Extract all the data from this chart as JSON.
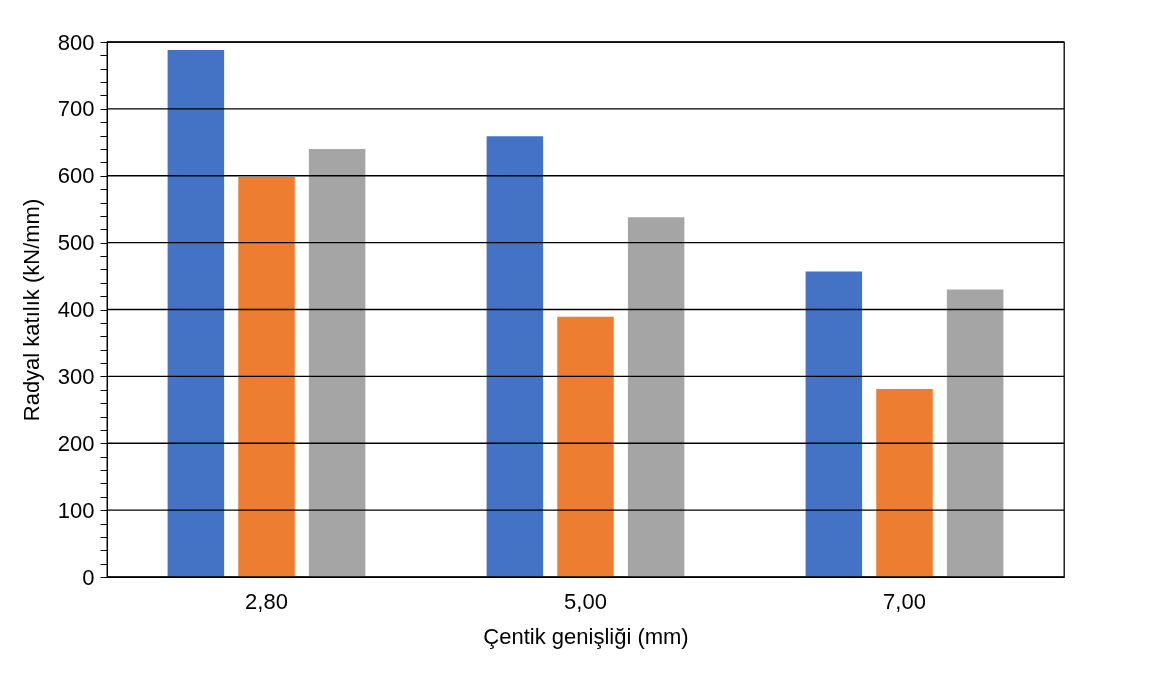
{
  "chart_data": {
    "type": "bar",
    "xlabel": "Çentik genişliği (mm)",
    "ylabel": "Radyal katılık (kN/mm)",
    "categories": [
      "2,80",
      "5,00",
      "7,00"
    ],
    "series": [
      {
        "color": "#4472c4",
        "values": [
          788,
          659,
          457
        ]
      },
      {
        "color": "#ed7d31",
        "values": [
          598,
          389,
          281
        ]
      },
      {
        "color": "#a5a5a5",
        "values": [
          640,
          538,
          430
        ]
      }
    ],
    "ylim": [
      0,
      800
    ],
    "yticks": [
      0,
      {
        "value": 20,
        "label": null
      },
      {
        "value": 40,
        "label": null
      },
      {
        "value": 60,
        "label": null
      },
      {
        "value": 80,
        "label": null
      },
      100,
      {
        "value": 120,
        "label": null
      },
      {
        "value": 140,
        "label": null
      },
      {
        "value": 160,
        "label": null
      },
      {
        "value": 180,
        "label": null
      },
      200,
      {
        "value": 220,
        "label": null
      },
      {
        "value": 240,
        "label": null
      },
      {
        "value": 260,
        "label": null
      },
      {
        "value": 280,
        "label": null
      },
      300,
      {
        "value": 320,
        "label": null
      },
      {
        "value": 340,
        "label": null
      },
      {
        "value": 360,
        "label": null
      },
      {
        "value": 380,
        "label": null
      },
      400,
      {
        "value": 420,
        "label": null
      },
      {
        "value": 440,
        "label": null
      },
      {
        "value": 460,
        "label": null
      },
      {
        "value": 480,
        "label": null
      },
      500,
      {
        "value": 520,
        "label": null
      },
      {
        "value": 540,
        "label": null
      },
      {
        "value": 560,
        "label": null
      },
      {
        "value": 580,
        "label": null
      },
      600,
      {
        "value": 620,
        "label": null
      },
      {
        "value": 640,
        "label": null
      },
      {
        "value": 660,
        "label": null
      },
      {
        "value": 680,
        "label": null
      },
      700,
      {
        "value": 720,
        "label": null
      },
      {
        "value": 740,
        "label": null
      },
      {
        "value": 760,
        "label": null
      },
      {
        "value": 780,
        "label": null
      },
      800
    ],
    "grid": "y"
  }
}
